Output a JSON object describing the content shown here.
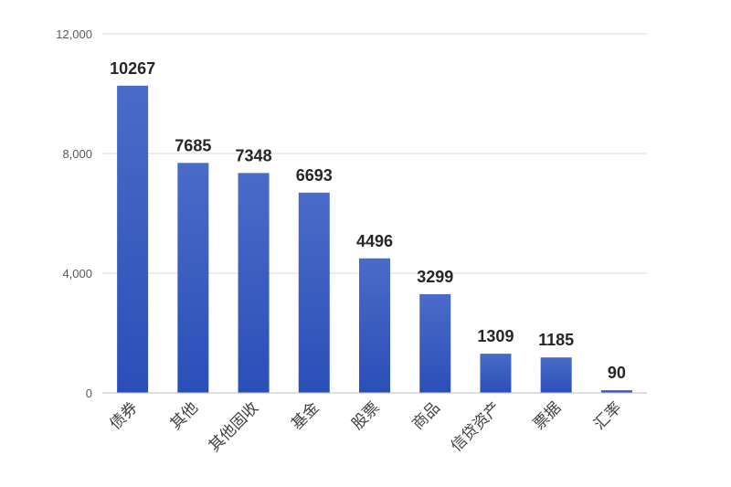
{
  "chart_data": {
    "type": "bar",
    "title": "",
    "xlabel": "",
    "ylabel": "",
    "categories": [
      "债券",
      "其他",
      "其他固收",
      "基金",
      "股票",
      "商品",
      "信贷资产",
      "票据",
      "汇率"
    ],
    "values": [
      10267,
      7685,
      7348,
      6693,
      4496,
      3299,
      1309,
      1185,
      90
    ],
    "data_labels": [
      "10267",
      "7685",
      "7348",
      "6693",
      "4496",
      "3299",
      "1309",
      "1185",
      "90"
    ],
    "ylim": [
      0,
      12000
    ],
    "yticks": [
      0,
      4000,
      8000,
      12000
    ],
    "ytick_labels": [
      "0",
      "4,000",
      "8,000",
      "12,000"
    ],
    "grid": true,
    "legend": "none",
    "colors": {
      "bar_top": "#4a6bc8",
      "bar_bottom": "#2a4fb8"
    }
  }
}
